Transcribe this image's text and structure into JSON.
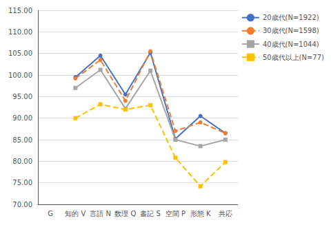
{
  "chart_data": {
    "type": "line",
    "categories": [
      "G",
      "知的 V",
      "言語 N",
      "数理 Q",
      "書記 S",
      "空間 P",
      "形態 K",
      "共応"
    ],
    "series": [
      {
        "name": "20歳代(N=1922)",
        "color": "#4472C4",
        "marker": "circle",
        "line_style": "solid",
        "values": [
          null,
          99.5,
          104.5,
          95.5,
          105.2,
          85.2,
          90.5,
          86.5
        ]
      },
      {
        "name": "30歳代(N=1598)",
        "color": "#ED7D31",
        "marker": "circle",
        "line_style": "dashed",
        "values": [
          null,
          99.2,
          103.5,
          94.0,
          105.5,
          87.0,
          89.0,
          86.5
        ]
      },
      {
        "name": "40歳代(N=1044)",
        "color": "#A5A5A5",
        "marker": "square",
        "line_style": "solid",
        "values": [
          null,
          97.0,
          101.2,
          92.2,
          101.0,
          85.0,
          83.5,
          85.0
        ]
      },
      {
        "name": "50歳代以上(N=77)",
        "color": "#FFC000",
        "marker": "square",
        "line_style": "dashed",
        "values": [
          null,
          90.0,
          93.2,
          92.0,
          93.0,
          80.8,
          74.2,
          79.8
        ]
      }
    ],
    "ylim": [
      70,
      115
    ],
    "yticks": [
      {
        "value": 70,
        "label": "70.00"
      },
      {
        "value": 75,
        "label": "75.00"
      },
      {
        "value": 80,
        "label": "80.00"
      },
      {
        "value": 85,
        "label": "85.00"
      },
      {
        "value": 90,
        "label": "90.00"
      },
      {
        "value": 95,
        "label": "95.00"
      },
      {
        "value": 100,
        "label": "100.00"
      },
      {
        "value": 105,
        "label": "105.00"
      },
      {
        "value": 110,
        "label": "110.00"
      },
      {
        "value": 115,
        "label": "115.00"
      }
    ],
    "grid": true,
    "legend": "upper right"
  }
}
